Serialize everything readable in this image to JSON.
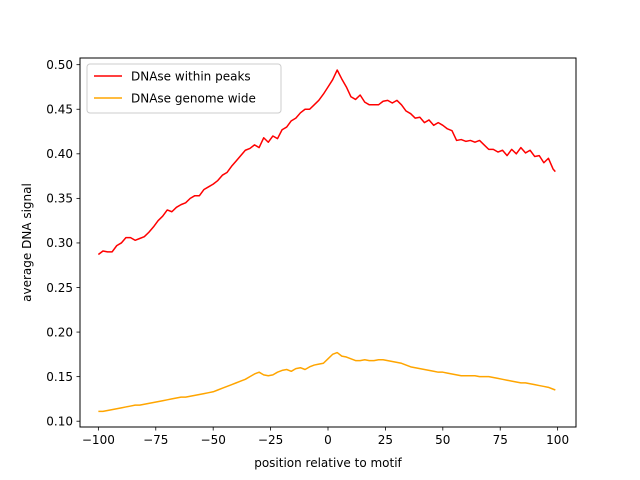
{
  "chart_data": {
    "type": "line",
    "title": "",
    "xlabel": "position relative to motif",
    "ylabel": "average DNA signal",
    "xlim": [
      -108,
      108
    ],
    "ylim": [
      0.0935,
      0.5075
    ],
    "xticks": [
      -100,
      -75,
      -50,
      -25,
      0,
      25,
      50,
      75,
      100
    ],
    "xtick_labels": [
      "−100",
      "−75",
      "−50",
      "−25",
      "0",
      "25",
      "50",
      "75",
      "100"
    ],
    "yticks": [
      0.1,
      0.15,
      0.2,
      0.25,
      0.3,
      0.35,
      0.4,
      0.45,
      0.5
    ],
    "ytick_labels": [
      "0.10",
      "0.15",
      "0.20",
      "0.25",
      "0.30",
      "0.35",
      "0.40",
      "0.45",
      "0.50"
    ],
    "grid": false,
    "legend_position": "top-left",
    "series": [
      {
        "name": "DNAse within peaks",
        "color": "#ff0000",
        "x": [
          -100,
          -98,
          -96,
          -94,
          -92,
          -90,
          -88,
          -86,
          -84,
          -82,
          -80,
          -78,
          -76,
          -74,
          -72,
          -70,
          -68,
          -66,
          -64,
          -62,
          -60,
          -58,
          -56,
          -54,
          -52,
          -50,
          -48,
          -46,
          -44,
          -42,
          -40,
          -38,
          -36,
          -34,
          -32,
          -30,
          -28,
          -26,
          -24,
          -22,
          -20,
          -18,
          -16,
          -14,
          -12,
          -10,
          -8,
          -6,
          -4,
          -2,
          0,
          2,
          4,
          6,
          8,
          10,
          12,
          14,
          16,
          18,
          20,
          22,
          24,
          26,
          28,
          30,
          32,
          34,
          36,
          38,
          40,
          42,
          44,
          46,
          48,
          50,
          52,
          54,
          56,
          58,
          60,
          62,
          64,
          66,
          68,
          70,
          72,
          74,
          76,
          78,
          80,
          82,
          84,
          86,
          88,
          90,
          92,
          94,
          96,
          98,
          99
        ],
        "values": [
          0.287,
          0.291,
          0.29,
          0.29,
          0.297,
          0.3,
          0.306,
          0.306,
          0.303,
          0.305,
          0.307,
          0.312,
          0.318,
          0.325,
          0.33,
          0.337,
          0.335,
          0.34,
          0.343,
          0.345,
          0.35,
          0.353,
          0.353,
          0.36,
          0.363,
          0.366,
          0.37,
          0.376,
          0.379,
          0.386,
          0.392,
          0.398,
          0.404,
          0.406,
          0.41,
          0.407,
          0.418,
          0.413,
          0.42,
          0.417,
          0.427,
          0.43,
          0.437,
          0.44,
          0.446,
          0.45,
          0.45,
          0.455,
          0.46,
          0.467,
          0.475,
          0.483,
          0.494,
          0.484,
          0.475,
          0.464,
          0.461,
          0.466,
          0.458,
          0.455,
          0.455,
          0.455,
          0.459,
          0.46,
          0.457,
          0.46,
          0.455,
          0.448,
          0.445,
          0.44,
          0.441,
          0.435,
          0.438,
          0.432,
          0.435,
          0.432,
          0.428,
          0.426,
          0.415,
          0.416,
          0.414,
          0.415,
          0.413,
          0.415,
          0.41,
          0.405,
          0.405,
          0.402,
          0.404,
          0.398,
          0.405,
          0.4,
          0.407,
          0.401,
          0.404,
          0.397,
          0.398,
          0.39,
          0.395,
          0.383,
          0.38
        ]
      },
      {
        "name": "DNAse genome wide",
        "color": "#ffa500",
        "x": [
          -100,
          -98,
          -96,
          -94,
          -92,
          -90,
          -88,
          -86,
          -84,
          -82,
          -80,
          -78,
          -76,
          -74,
          -72,
          -70,
          -68,
          -66,
          -64,
          -62,
          -60,
          -58,
          -56,
          -54,
          -52,
          -50,
          -48,
          -46,
          -44,
          -42,
          -40,
          -38,
          -36,
          -34,
          -32,
          -30,
          -28,
          -26,
          -24,
          -22,
          -20,
          -18,
          -16,
          -14,
          -12,
          -10,
          -8,
          -6,
          -4,
          -2,
          0,
          2,
          4,
          6,
          8,
          10,
          12,
          14,
          16,
          18,
          20,
          22,
          24,
          26,
          28,
          30,
          32,
          34,
          36,
          38,
          40,
          42,
          44,
          46,
          48,
          50,
          52,
          54,
          56,
          58,
          60,
          62,
          64,
          66,
          68,
          70,
          72,
          74,
          76,
          78,
          80,
          82,
          84,
          86,
          88,
          90,
          92,
          94,
          96,
          98,
          99
        ],
        "values": [
          0.111,
          0.111,
          0.112,
          0.113,
          0.114,
          0.115,
          0.116,
          0.117,
          0.118,
          0.118,
          0.119,
          0.12,
          0.121,
          0.122,
          0.123,
          0.124,
          0.125,
          0.126,
          0.127,
          0.127,
          0.128,
          0.129,
          0.13,
          0.131,
          0.132,
          0.133,
          0.135,
          0.137,
          0.139,
          0.141,
          0.143,
          0.145,
          0.147,
          0.15,
          0.153,
          0.155,
          0.152,
          0.151,
          0.152,
          0.155,
          0.157,
          0.158,
          0.156,
          0.159,
          0.16,
          0.158,
          0.161,
          0.163,
          0.164,
          0.165,
          0.17,
          0.175,
          0.177,
          0.173,
          0.172,
          0.17,
          0.168,
          0.168,
          0.169,
          0.168,
          0.168,
          0.169,
          0.169,
          0.168,
          0.167,
          0.166,
          0.165,
          0.163,
          0.161,
          0.16,
          0.159,
          0.158,
          0.157,
          0.156,
          0.155,
          0.155,
          0.154,
          0.153,
          0.152,
          0.151,
          0.151,
          0.151,
          0.151,
          0.15,
          0.15,
          0.15,
          0.149,
          0.148,
          0.147,
          0.146,
          0.145,
          0.144,
          0.143,
          0.143,
          0.142,
          0.141,
          0.14,
          0.139,
          0.138,
          0.136,
          0.135
        ]
      }
    ]
  }
}
